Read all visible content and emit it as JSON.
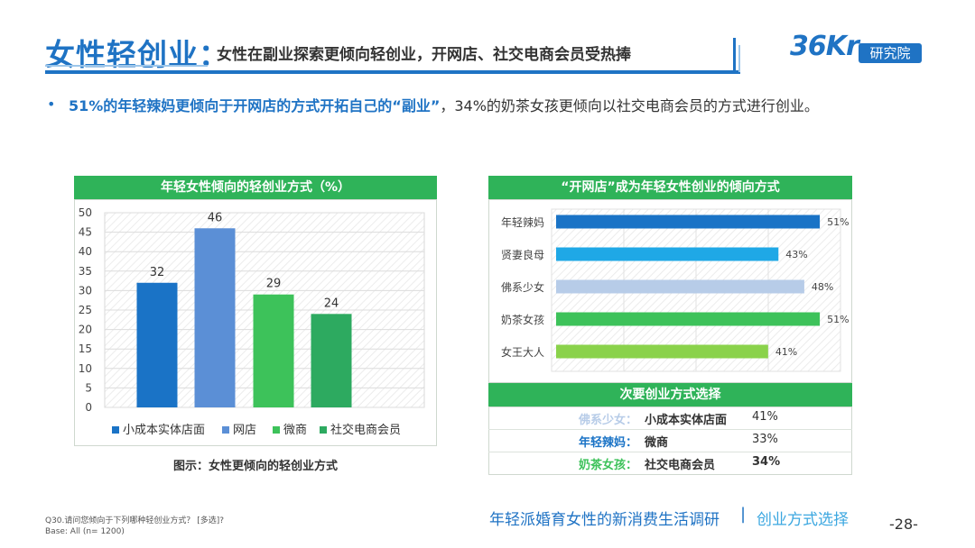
{
  "header": {
    "title_main": "女性轻创业：",
    "title_sub": "女性在副业探索更倾向轻创业，开网店、社交电商会员受热捧",
    "logo_text": "36Kr",
    "logo_tag": "研究院"
  },
  "bullet": {
    "highlight": "51%的年轻辣妈更倾向于开网店的方式开拓自己的“副业”",
    "rest": "，34%的奶茶女孩更倾向以社交电商会员的方式进行创业。"
  },
  "chart_data": [
    {
      "type": "bar",
      "title": "年轻女性倾向的轻创业方式（%）",
      "caption": "图示：女性更倾向的轻创业方式",
      "categories": [
        "小成本实体店面",
        "网店",
        "微商",
        "社交电商会员"
      ],
      "values": [
        32,
        46,
        29,
        24
      ],
      "colors": [
        "#1A73C6",
        "#5B8FD6",
        "#3DC25A",
        "#2DAA60"
      ],
      "ylim": [
        0,
        50
      ],
      "yticks": [
        0,
        5,
        10,
        15,
        20,
        25,
        30,
        35,
        40,
        45,
        50
      ],
      "grid": true,
      "legend": "bottom"
    },
    {
      "type": "bar",
      "orientation": "horizontal",
      "title": "“开网店”成为年轻女性创业的倾向方式",
      "categories": [
        "年轻辣妈",
        "贤妻良母",
        "佛系少女",
        "奶茶女孩",
        "女王大人"
      ],
      "values": [
        51,
        43,
        48,
        51,
        41
      ],
      "value_labels": [
        "51%",
        "43%",
        "48%",
        "51%",
        "41%"
      ],
      "colors": [
        "#1A73C6",
        "#1FA8E6",
        "#B7CCE8",
        "#3DC25A",
        "#8AD24B"
      ],
      "xlim": [
        0,
        55
      ],
      "grid": true
    }
  ],
  "secondary": {
    "title": "次要创业方式选择",
    "rows": [
      {
        "group": "佛系少女：",
        "mode": "小成本实体店面",
        "value": "41%",
        "color": "#B7CCE8",
        "bold_value": false
      },
      {
        "group": "年轻辣妈：",
        "mode": "微商",
        "value": "33%",
        "color": "#1A73C6",
        "bold_value": false
      },
      {
        "group": "奶茶女孩：",
        "mode": "社交电商会员",
        "value": "34%",
        "color": "#3DC25A",
        "bold_value": true
      }
    ]
  },
  "footer": {
    "note_line1": "Q30.请问您倾向于下列哪种轻创业方式？ [多选]?",
    "note_line2": "Base: All (n= 1200)",
    "report": "年轻派婚育女性的新消费生活调研",
    "separator": "|",
    "section": "创业方式选择",
    "page": "-28-"
  }
}
